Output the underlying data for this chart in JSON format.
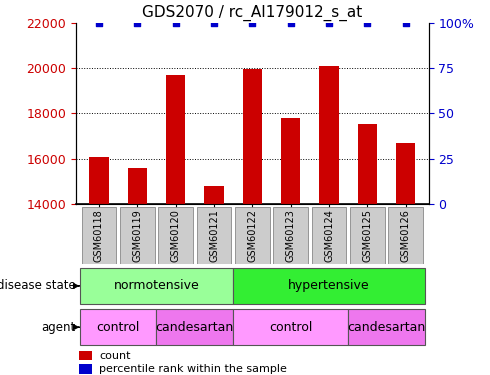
{
  "title": "GDS2070 / rc_AI179012_s_at",
  "samples": [
    "GSM60118",
    "GSM60119",
    "GSM60120",
    "GSM60121",
    "GSM60122",
    "GSM60123",
    "GSM60124",
    "GSM60125",
    "GSM60126"
  ],
  "counts": [
    16100,
    15600,
    19700,
    14800,
    19950,
    17800,
    20100,
    17550,
    16700
  ],
  "percentile_ranks": [
    100,
    100,
    100,
    100,
    100,
    100,
    100,
    100,
    100
  ],
  "ylim_left": [
    14000,
    22000
  ],
  "ylim_right": [
    0,
    100
  ],
  "yticks_left": [
    14000,
    16000,
    18000,
    20000,
    22000
  ],
  "yticks_right": [
    0,
    25,
    50,
    75,
    100
  ],
  "bar_color": "#cc0000",
  "dot_color": "#0000cc",
  "bar_width": 0.5,
  "disease_state_groups": [
    {
      "label": "normotensive",
      "start": 0,
      "end": 4,
      "color": "#99ff99"
    },
    {
      "label": "hypertensive",
      "start": 4,
      "end": 9,
      "color": "#33ee33"
    }
  ],
  "agent_groups": [
    {
      "label": "control",
      "start": 0,
      "end": 2,
      "color": "#ff99ff"
    },
    {
      "label": "candesartan",
      "start": 2,
      "end": 4,
      "color": "#ee77ee"
    },
    {
      "label": "control",
      "start": 4,
      "end": 7,
      "color": "#ff99ff"
    },
    {
      "label": "candesartan",
      "start": 7,
      "end": 9,
      "color": "#ee77ee"
    }
  ],
  "legend_count_color": "#cc0000",
  "legend_pct_color": "#0000cc",
  "title_fontsize": 11,
  "tick_fontsize": 9,
  "label_fontsize": 9,
  "sample_label_color": "#cccccc",
  "fig_width": 4.9,
  "fig_height": 3.75,
  "dpi": 100
}
